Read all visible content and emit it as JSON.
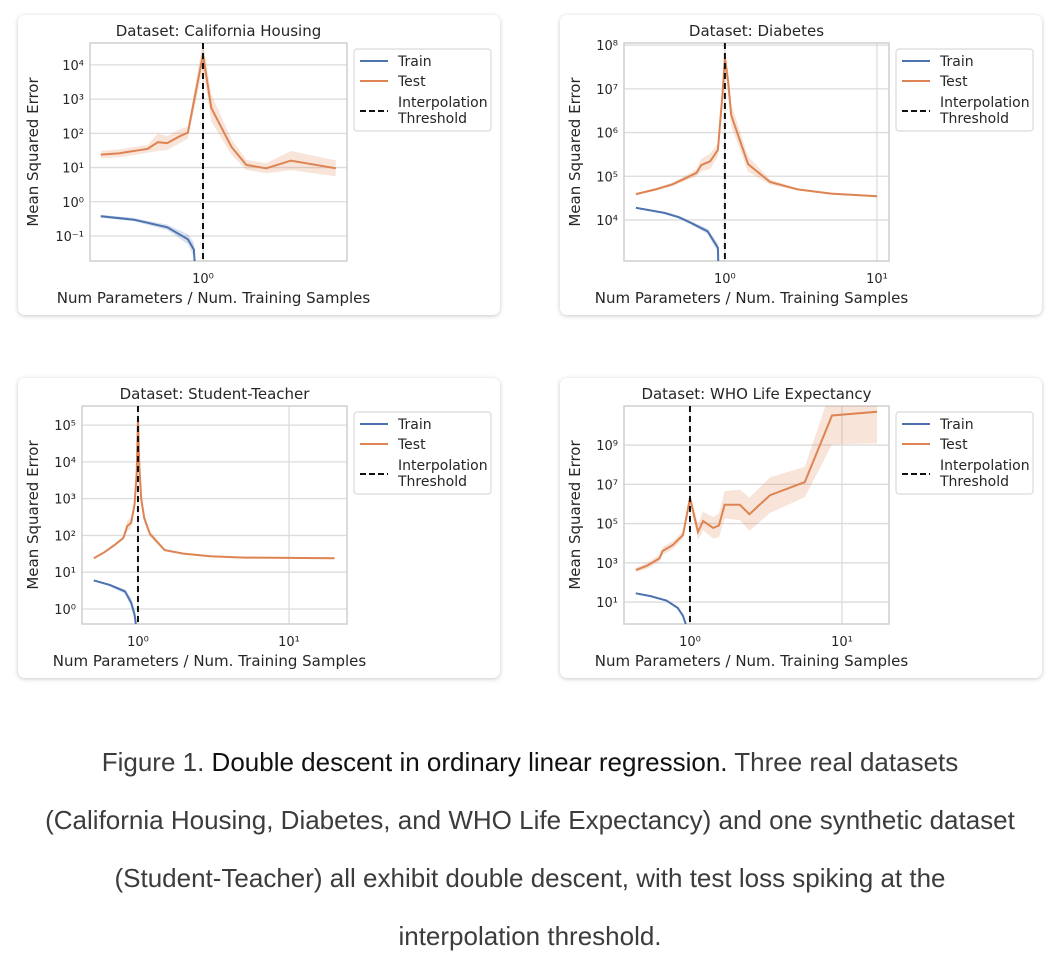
{
  "legend": {
    "train": "Train",
    "test": "Test",
    "threshold_line1": "Interpolation",
    "threshold_line2": "Threshold"
  },
  "colors": {
    "train": "#4c72b0",
    "test": "#dd8452",
    "threshold": "#111111",
    "grid": "#dcdcdc"
  },
  "caption": {
    "figure_label": "Figure 1. ",
    "bold_title": "Double descent in ordinary linear regression.",
    "line1_rest": " Three real datasets",
    "line2": "(California Housing, Diabetes, and WHO Life Expectancy) and one synthetic dataset",
    "line3": "(Student-Teacher) all exhibit double descent, with test loss spiking at the",
    "line4": "interpolation threshold."
  },
  "chart_data": [
    {
      "type": "line",
      "title": "Dataset: California Housing",
      "xlabel": "Num Parameters / Num. Training Samples",
      "ylabel": "Mean Squared Error",
      "xscale": "log",
      "yscale": "log",
      "xlim": [
        0.353,
        3.77
      ],
      "ylim": [
        0.0186,
        43650
      ],
      "threshold_x": 1,
      "xticks": [
        {
          "value": 1,
          "label": "10⁰"
        }
      ],
      "yticks": [
        {
          "value": 0.1,
          "label": "10⁻¹"
        },
        {
          "value": 1,
          "label": "10⁰"
        },
        {
          "value": 10,
          "label": "10¹"
        },
        {
          "value": 100,
          "label": "10²"
        },
        {
          "value": 1000,
          "label": "10³"
        },
        {
          "value": 10000,
          "label": "10⁴"
        }
      ],
      "series": [
        {
          "name": "Train",
          "x": [
            0.39,
            0.53,
            0.72,
            0.87,
            0.92,
            0.93
          ],
          "y": [
            0.38,
            0.3,
            0.18,
            0.08,
            0.04,
            0.01
          ],
          "band_factor": [
            1.1,
            1.12,
            1.2,
            1.4,
            1.6,
            1.6
          ]
        },
        {
          "name": "Test",
          "x": [
            0.39,
            0.46,
            0.55,
            0.6,
            0.66,
            0.72,
            0.8,
            0.87,
            1.0,
            1.08,
            1.3,
            1.49,
            1.79,
            2.25,
            3.4
          ],
          "y": [
            24,
            26,
            32,
            35,
            55,
            52,
            80,
            105,
            20000,
            550,
            40,
            12,
            9.5,
            16,
            9.5
          ],
          "band_factor": [
            1.3,
            1.3,
            1.3,
            1.3,
            1.8,
            1.6,
            1.6,
            1.5,
            2.5,
            2.5,
            1.7,
            1.4,
            1.4,
            1.9,
            1.7
          ]
        }
      ]
    },
    {
      "type": "line",
      "title": "Dataset: Diabetes",
      "xlabel": "Num Parameters / Num. Training Samples",
      "ylabel": "Mean Squared Error",
      "xscale": "log",
      "yscale": "log",
      "xlim": [
        0.217,
        12.0
      ],
      "ylim": [
        1150,
        112000000
      ],
      "threshold_x": 1,
      "xticks": [
        {
          "value": 1,
          "label": "10⁰"
        },
        {
          "value": 10,
          "label": "10¹"
        }
      ],
      "yticks": [
        {
          "value": 10000,
          "label": "10⁴"
        },
        {
          "value": 100000,
          "label": "10⁵"
        },
        {
          "value": 1000000,
          "label": "10⁶"
        },
        {
          "value": 10000000,
          "label": "10⁷"
        },
        {
          "value": 100000000,
          "label": "10⁸"
        }
      ],
      "series": [
        {
          "name": "Train",
          "x": [
            0.26,
            0.4,
            0.5,
            0.6,
            0.77,
            0.9,
            0.905
          ],
          "y": [
            19000,
            14500,
            11500,
            8500,
            5500,
            2300,
            1000
          ],
          "band_factor": [
            1.05,
            1.06,
            1.08,
            1.1,
            1.15,
            1.25,
            1.3
          ]
        },
        {
          "name": "Test",
          "x": [
            0.26,
            0.35,
            0.45,
            0.55,
            0.65,
            0.7,
            0.8,
            0.9,
            0.97,
            1.0,
            1.05,
            1.1,
            1.42,
            1.98,
            3,
            5,
            10
          ],
          "y": [
            39000,
            50000,
            65000,
            90000,
            120000,
            180000,
            220000,
            400000,
            10000000,
            50000000,
            15000000,
            2500000,
            190000,
            74000,
            50000,
            40000,
            35000
          ],
          "band_factor": [
            1.05,
            1.08,
            1.1,
            1.15,
            1.2,
            1.4,
            1.5,
            1.4,
            1.8,
            1.8,
            1.8,
            1.8,
            1.5,
            1.15,
            1.05,
            1.05,
            1.05
          ]
        }
      ]
    },
    {
      "type": "line",
      "title": "Dataset: Student-Teacher",
      "xlabel": "Num Parameters / Num. Training Samples",
      "ylabel": "Mean Squared Error",
      "xscale": "log",
      "yscale": "log",
      "xlim": [
        0.426,
        24.2
      ],
      "ylim": [
        0.39,
        331000
      ],
      "threshold_x": 1,
      "xticks": [
        {
          "value": 1,
          "label": "10⁰"
        },
        {
          "value": 10,
          "label": "10¹"
        }
      ],
      "yticks": [
        {
          "value": 1,
          "label": "10⁰"
        },
        {
          "value": 10,
          "label": "10¹"
        },
        {
          "value": 100,
          "label": "10²"
        },
        {
          "value": 1000,
          "label": "10³"
        },
        {
          "value": 10000,
          "label": "10⁴"
        },
        {
          "value": 100000,
          "label": "10⁵"
        }
      ],
      "series": [
        {
          "name": "Train",
          "x": [
            0.51,
            0.65,
            0.82,
            0.9,
            0.95,
            0.97
          ],
          "y": [
            6,
            4.5,
            3,
            1.5,
            0.7,
            0.35
          ],
          "band_factor": [
            1.05,
            1.08,
            1.15,
            1.3,
            1.4,
            1.4
          ]
        },
        {
          "name": "Test",
          "x": [
            0.51,
            0.6,
            0.7,
            0.8,
            0.85,
            0.9,
            0.95,
            0.98,
            1.0,
            1.02,
            1.05,
            1.1,
            1.2,
            1.5,
            2,
            3,
            5,
            10,
            20
          ],
          "y": [
            24,
            35,
            55,
            85,
            180,
            220,
            700,
            5000,
            150000,
            8000,
            1000,
            300,
            110,
            40,
            32,
            27,
            25,
            24.5,
            24
          ],
          "band_factor": [
            1.03,
            1.05,
            1.08,
            1.1,
            1.4,
            1.4,
            1.4,
            1.5,
            1.5,
            1.5,
            1.4,
            1.3,
            1.2,
            1.08,
            1.04,
            1.03,
            1.02,
            1.02,
            1.02
          ]
        }
      ]
    },
    {
      "type": "line",
      "title": "Dataset: WHO Life Expectancy",
      "xlabel": "Num Parameters / Num. Training Samples",
      "ylabel": "Mean Squared Error",
      "xscale": "log",
      "yscale": "log",
      "xlim": [
        0.368,
        20.4
      ],
      "ylim": [
        0.76,
        98000000000
      ],
      "threshold_x": 1,
      "xticks": [
        {
          "value": 1,
          "label": "10⁰"
        },
        {
          "value": 10,
          "label": "10¹"
        }
      ],
      "yticks": [
        {
          "value": 10,
          "label": "10¹"
        },
        {
          "value": 1000,
          "label": "10³"
        },
        {
          "value": 100000,
          "label": "10⁵"
        },
        {
          "value": 10000000,
          "label": "10⁷"
        },
        {
          "value": 1000000000,
          "label": "10⁹"
        }
      ],
      "series": [
        {
          "name": "Train",
          "x": [
            0.44,
            0.55,
            0.7,
            0.83,
            0.9,
            0.94
          ],
          "y": [
            28,
            20,
            12,
            5,
            2,
            0.7
          ],
          "band_factor": [
            1.05,
            1.05,
            1.08,
            1.1,
            1.15,
            1.2
          ]
        },
        {
          "name": "Test",
          "x": [
            0.44,
            0.52,
            0.63,
            0.66,
            0.77,
            0.9,
            1.0,
            1.13,
            1.22,
            1.42,
            1.55,
            1.69,
            2.13,
            2.46,
            3.36,
            5.7,
            8.6,
            17
          ],
          "y": [
            430,
            700,
            1700,
            4000,
            8000,
            26000,
            2000000,
            37000,
            135000,
            60000,
            80000,
            900000,
            900000,
            300000,
            2800000,
            13000000,
            32000000000,
            50000000000
          ],
          "band_factor": [
            1.3,
            1.4,
            1.5,
            1.6,
            1.6,
            1.6,
            1.8,
            2.5,
            3,
            3.5,
            4,
            5,
            6,
            7,
            8,
            6,
            30,
            40
          ]
        }
      ]
    }
  ]
}
